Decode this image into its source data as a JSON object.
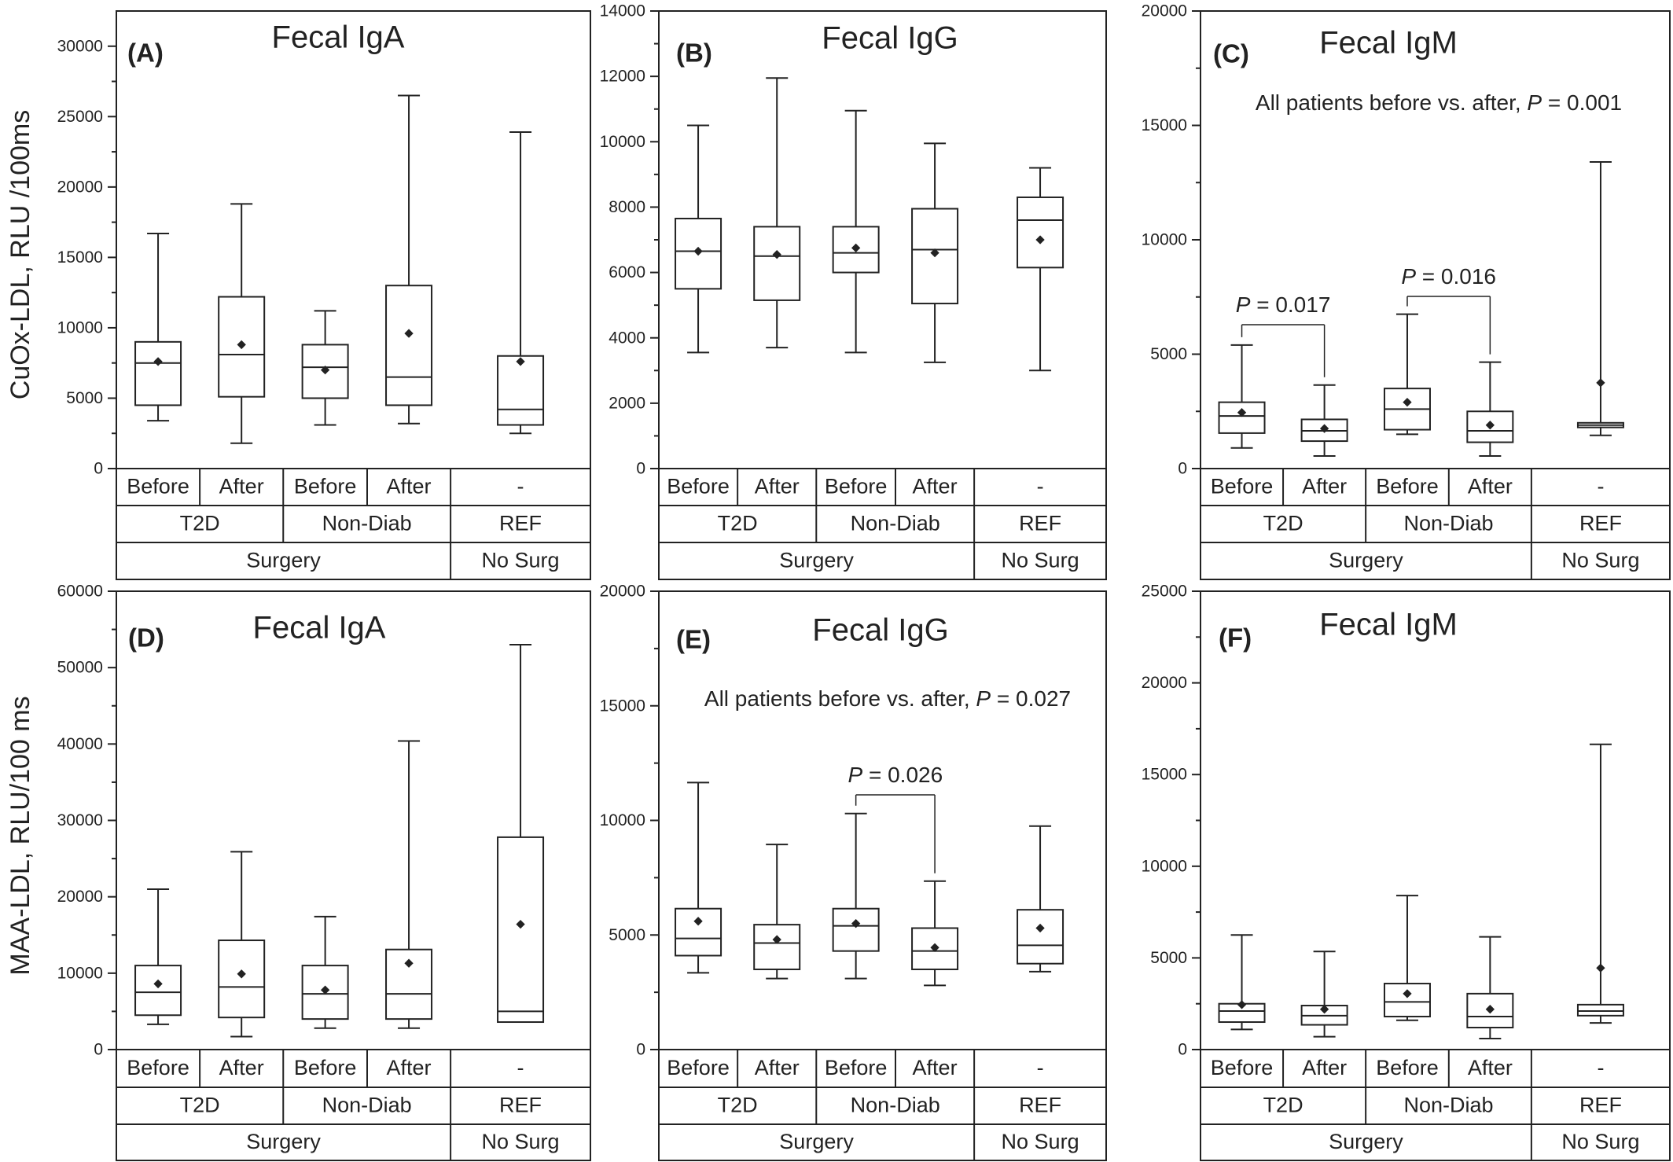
{
  "y_axis_labels": [
    "CuOx-LDL, RLU /100ms",
    "MAA-LDL, RLU/100 ms"
  ],
  "category_rows": {
    "row1": [
      "Before",
      "After",
      "Before",
      "After",
      "-"
    ],
    "row2": [
      "T2D",
      "Non-Diab",
      "REF"
    ],
    "row3": [
      "Surgery",
      "No Surg"
    ]
  },
  "chart_data": [
    {
      "type": "box",
      "panel": "(A)",
      "title": "Fecal IgA",
      "ylabel": "CuOx-LDL, RLU /100ms",
      "ylim": [
        0,
        32500
      ],
      "yticks": [
        0,
        5000,
        10000,
        15000,
        20000,
        25000,
        30000
      ],
      "categories": [
        "Before",
        "After",
        "Before",
        "After",
        "-"
      ],
      "boxes": [
        {
          "min": 3400,
          "q1": 4500,
          "median": 7500,
          "q3": 9000,
          "max": 16700,
          "mean": 7600
        },
        {
          "min": 1800,
          "q1": 5100,
          "median": 8100,
          "q3": 12200,
          "max": 18800,
          "mean": 8800
        },
        {
          "min": 3100,
          "q1": 5000,
          "median": 7200,
          "q3": 8800,
          "max": 11200,
          "mean": 7000
        },
        {
          "min": 3200,
          "q1": 4500,
          "median": 6500,
          "q3": 13000,
          "max": 26500,
          "mean": 9600
        },
        {
          "min": 2500,
          "q1": 3100,
          "median": 4200,
          "q3": 8000,
          "max": 23900,
          "mean": 7600
        }
      ],
      "note": "",
      "comparisons": []
    },
    {
      "type": "box",
      "panel": "(B)",
      "title": "Fecal IgG",
      "ylabel": "",
      "ylim": [
        0,
        14000
      ],
      "yticks": [
        0,
        2000,
        4000,
        6000,
        8000,
        10000,
        12000,
        14000
      ],
      "categories": [
        "Before",
        "After",
        "Before",
        "After",
        "-"
      ],
      "boxes": [
        {
          "min": 3550,
          "q1": 5500,
          "median": 6650,
          "q3": 7650,
          "max": 10500,
          "mean": 6650
        },
        {
          "min": 3700,
          "q1": 5150,
          "median": 6500,
          "q3": 7400,
          "max": 11950,
          "mean": 6550
        },
        {
          "min": 3550,
          "q1": 6000,
          "median": 6600,
          "q3": 7400,
          "max": 10950,
          "mean": 6750
        },
        {
          "min": 3250,
          "q1": 5050,
          "median": 6700,
          "q3": 7950,
          "max": 9950,
          "mean": 6600
        },
        {
          "min": 3000,
          "q1": 6150,
          "median": 7600,
          "q3": 8300,
          "max": 9200,
          "mean": 7000
        }
      ],
      "note": "",
      "comparisons": []
    },
    {
      "type": "box",
      "panel": "(C)",
      "title": "Fecal IgM",
      "ylabel": "",
      "ylim": [
        0,
        20000
      ],
      "yticks": [
        0,
        5000,
        10000,
        15000,
        20000
      ],
      "categories": [
        "Before",
        "After",
        "Before",
        "After",
        "-"
      ],
      "boxes": [
        {
          "min": 900,
          "q1": 1550,
          "median": 2300,
          "q3": 2900,
          "max": 5400,
          "mean": 2450
        },
        {
          "min": 550,
          "q1": 1200,
          "median": 1650,
          "q3": 2150,
          "max": 3650,
          "mean": 1750
        },
        {
          "min": 1500,
          "q1": 1700,
          "median": 2600,
          "q3": 3500,
          "max": 6750,
          "mean": 2900
        },
        {
          "min": 550,
          "q1": 1150,
          "median": 1650,
          "q3": 2500,
          "max": 4650,
          "mean": 1900
        },
        {
          "min": 1450,
          "q1": 1800,
          "median": 1900,
          "q3": 2000,
          "max": 13400,
          "mean": 3750
        }
      ],
      "note": "All patients  before vs. after, P = 0.001",
      "comparisons": [
        {
          "from": 0,
          "to": 1,
          "label": "P = 0.017"
        },
        {
          "from": 2,
          "to": 3,
          "label": "P = 0.016"
        }
      ]
    },
    {
      "type": "box",
      "panel": "(D)",
      "title": "Fecal IgA",
      "ylabel": "MAA-LDL, RLU/100 ms",
      "ylim": [
        0,
        60000
      ],
      "yticks": [
        0,
        10000,
        20000,
        30000,
        40000,
        50000,
        60000
      ],
      "categories": [
        "Before",
        "After",
        "Before",
        "After",
        "-"
      ],
      "boxes": [
        {
          "min": 3300,
          "q1": 4500,
          "median": 7500,
          "q3": 11000,
          "max": 21000,
          "mean": 8600
        },
        {
          "min": 1700,
          "q1": 4200,
          "median": 8200,
          "q3": 14300,
          "max": 25900,
          "mean": 9900
        },
        {
          "min": 2800,
          "q1": 4000,
          "median": 7300,
          "q3": 11000,
          "max": 17400,
          "mean": 7800
        },
        {
          "min": 2800,
          "q1": 4000,
          "median": 7300,
          "q3": 13100,
          "max": 40400,
          "mean": 11300
        },
        {
          "min": 3600,
          "q1": 3600,
          "median": 5000,
          "q3": 27800,
          "max": 53000,
          "mean": 16400
        }
      ],
      "note": "",
      "comparisons": []
    },
    {
      "type": "box",
      "panel": "(E)",
      "title": "Fecal IgG",
      "ylabel": "",
      "ylim": [
        0,
        20000
      ],
      "yticks": [
        0,
        5000,
        10000,
        15000,
        20000
      ],
      "categories": [
        "Before",
        "After",
        "Before",
        "After",
        "-"
      ],
      "boxes": [
        {
          "min": 3350,
          "q1": 4100,
          "median": 4850,
          "q3": 6150,
          "max": 11650,
          "mean": 5600
        },
        {
          "min": 3100,
          "q1": 3500,
          "median": 4650,
          "q3": 5450,
          "max": 8950,
          "mean": 4800
        },
        {
          "min": 3100,
          "q1": 4300,
          "median": 5400,
          "q3": 6150,
          "max": 10300,
          "mean": 5500
        },
        {
          "min": 2800,
          "q1": 3500,
          "median": 4300,
          "q3": 5300,
          "max": 7350,
          "mean": 4450
        },
        {
          "min": 3400,
          "q1": 3750,
          "median": 4550,
          "q3": 6100,
          "max": 9750,
          "mean": 5300
        }
      ],
      "note": "All patients  before vs. after, P = 0.027",
      "comparisons": [
        {
          "from": 2,
          "to": 3,
          "label": "P = 0.026"
        }
      ]
    },
    {
      "type": "box",
      "panel": "(F)",
      "title": "Fecal IgM",
      "ylabel": "",
      "ylim": [
        0,
        25000
      ],
      "yticks": [
        0,
        5000,
        10000,
        15000,
        20000,
        25000
      ],
      "categories": [
        "Before",
        "After",
        "Before",
        "After",
        "-"
      ],
      "boxes": [
        {
          "min": 1100,
          "q1": 1500,
          "median": 2100,
          "q3": 2500,
          "max": 6250,
          "mean": 2450
        },
        {
          "min": 700,
          "q1": 1350,
          "median": 1850,
          "q3": 2400,
          "max": 5350,
          "mean": 2200
        },
        {
          "min": 1600,
          "q1": 1800,
          "median": 2600,
          "q3": 3600,
          "max": 8400,
          "mean": 3050
        },
        {
          "min": 600,
          "q1": 1200,
          "median": 1800,
          "q3": 3050,
          "max": 6150,
          "mean": 2200
        },
        {
          "min": 1450,
          "q1": 1850,
          "median": 2100,
          "q3": 2450,
          "max": 16650,
          "mean": 4450
        }
      ],
      "note": "",
      "comparisons": []
    }
  ]
}
